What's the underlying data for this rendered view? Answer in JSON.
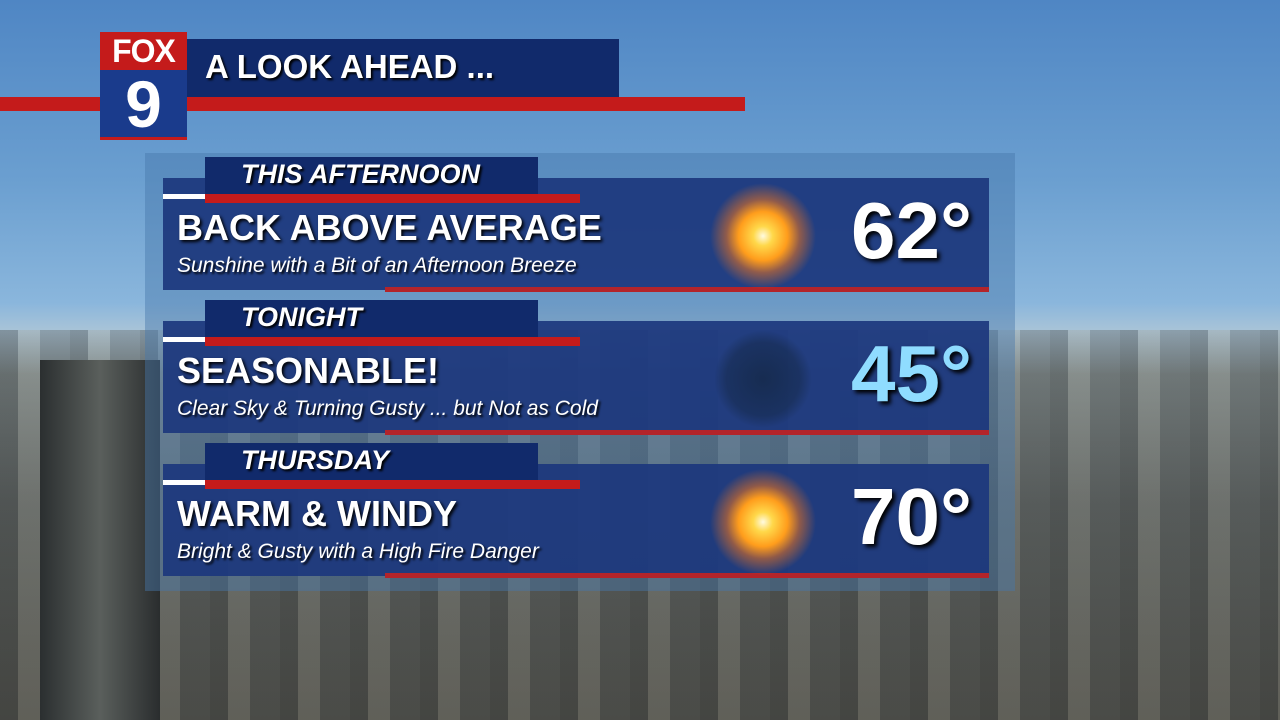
{
  "logo": {
    "network": "FOX",
    "channel": "9"
  },
  "title": "A LOOK AHEAD ...",
  "forecasts": [
    {
      "period": "THIS AFTERNOON",
      "headline": "BACK ABOVE AVERAGE",
      "detail": "Sunshine with a Bit of an Afternoon Breeze",
      "icon": "sun-icon",
      "temp": "62°",
      "temp_color": "#ffffff"
    },
    {
      "period": "TONIGHT",
      "headline": "SEASONABLE!",
      "detail": "Clear Sky & Turning Gusty ... but Not as Cold",
      "icon": "clear-night-icon",
      "temp": "45°",
      "temp_color": "#8fdcff"
    },
    {
      "period": "THURSDAY",
      "headline": "WARM & WINDY",
      "detail": "Bright & Gusty with a High Fire Danger",
      "icon": "sun-icon",
      "temp": "70°",
      "temp_color": "#ffffff"
    }
  ]
}
